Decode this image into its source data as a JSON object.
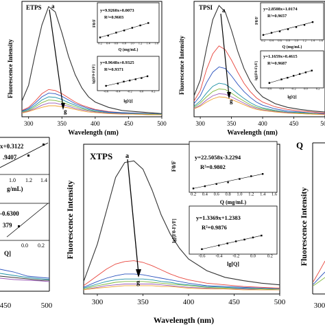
{
  "figure": {
    "panels": [
      {
        "id": "etps",
        "title": "ETPS",
        "ylabel": "Fluorescence Intensity",
        "xlabel": "Wavelength (nm)",
        "xticks": [
          "300",
          "350",
          "400",
          "450",
          "500"
        ],
        "arrow_start": "a",
        "arrow_end": "g",
        "inset_top": {
          "ylabel": "F0/F",
          "xlabel": "Q (mg/mL)",
          "eq": "y=9.9260x+0.0073",
          "r2": "R²=0.9603",
          "xticks": [
            "0.2",
            "0.4",
            "0.6",
            "0.8",
            "1.0",
            "1.2",
            "1.4",
            "1.6"
          ]
        },
        "inset_bottom": {
          "ylabel": "lg[(F0-F)/F]",
          "xlabel": "lg[Q]",
          "eq": "y=0.9648x+0.9325",
          "r2": "R²=0.9371",
          "xticks": [
            "-0.6",
            "-0.4",
            "-0.2",
            "0.0",
            "0.2"
          ]
        }
      },
      {
        "id": "tpsi",
        "title": "TPSI",
        "ylabel": "Fluorescence Intensity",
        "xlabel": "Wavelength (nm)",
        "xticks": [
          "300",
          "350",
          "400",
          "450",
          "500"
        ],
        "arrow_start": "a",
        "arrow_end": "g",
        "inset_top": {
          "ylabel": "F0/F",
          "xlabel": "Q (mg/mL)",
          "eq": "y=2.8508x+1.0174",
          "r2": "R²=0.9657",
          "xticks": [
            "0.2",
            "0.4",
            "0.6",
            "0.8",
            "1.0",
            "1.2",
            "1.4",
            "1.6"
          ]
        },
        "inset_bottom": {
          "ylabel": "lg[(F0-F)/F]",
          "xlabel": "lg[Q]",
          "eq": "y=1.1659x+0.4615",
          "r2": "R²=0.9687",
          "xticks": [
            "-0.6",
            "-0.4",
            "-0.2",
            "0.0",
            "0.2"
          ]
        }
      },
      {
        "id": "left-cut",
        "title": "",
        "ylabel": "",
        "xlabel": "",
        "xticks": [
          "450",
          "500"
        ],
        "inset_top": {
          "eq": "x+0.3122",
          "r2": ".9407",
          "xlabel": "g/mL)",
          "xticks": [
            "1.0",
            "1.2",
            "1.4"
          ]
        },
        "inset_bottom": {
          "eq": "-0.6300",
          "r2": "379",
          "xlabel": "Q]",
          "xticks": [
            "0.0",
            "0.2"
          ]
        }
      },
      {
        "id": "xtps",
        "title": "XTPS",
        "ylabel": "Fluorescence Intensity",
        "xlabel": "Wavelength (nm)",
        "xticks": [
          "300",
          "350",
          "400",
          "450",
          "500"
        ],
        "arrow_start": "a",
        "arrow_end": "g",
        "inset_top": {
          "ylabel": "F0/F",
          "xlabel": "Q (mg/mL)",
          "eq": "y=22.5058x-3.2294",
          "r2": "R²=0.9802",
          "xticks": [
            "0.2",
            "0.4",
            "0.6",
            "0.8",
            "1.0",
            "1.2",
            "1.4",
            "1.6"
          ]
        },
        "inset_bottom": {
          "ylabel": "lg[(F0-F)/F]",
          "xlabel": "lg[Q]",
          "eq": "y=1.3369x+1.2383",
          "r2": "R²=0.9876",
          "xticks": [
            "-0.6",
            "-0.4",
            "-0.2",
            "0.0",
            "0.2"
          ]
        }
      },
      {
        "id": "right-cut",
        "title": "Q",
        "ylabel": "Fluorescence Intensity",
        "xticks": [
          "300"
        ]
      }
    ]
  },
  "chart_data": [
    {
      "type": "line",
      "title": "ETPS",
      "xlabel": "Wavelength (nm)",
      "ylabel": "Fluorescence Intensity",
      "xlim": [
        290,
        500
      ],
      "ylim": [
        0,
        220
      ],
      "x": [
        290,
        300,
        310,
        320,
        330,
        340,
        350,
        360,
        370,
        380,
        390,
        400,
        420,
        440,
        460,
        480,
        500
      ],
      "series": [
        {
          "name": "a",
          "color": "#333333",
          "values": [
            30,
            60,
            120,
            175,
            210,
            200,
            160,
            115,
            80,
            55,
            38,
            28,
            18,
            12,
            10,
            8,
            6
          ]
        },
        {
          "name": "b",
          "color": "#e8453c",
          "values": [
            12,
            18,
            30,
            44,
            52,
            50,
            44,
            36,
            28,
            22,
            18,
            14,
            10,
            8,
            7,
            6,
            5
          ]
        },
        {
          "name": "c",
          "color": "#2a52be",
          "values": [
            11,
            16,
            26,
            38,
            45,
            44,
            39,
            32,
            25,
            20,
            16,
            13,
            9,
            8,
            7,
            6,
            5
          ]
        },
        {
          "name": "d",
          "color": "#1a8fa3",
          "values": [
            10,
            14,
            22,
            32,
            38,
            37,
            33,
            27,
            22,
            17,
            14,
            11,
            8,
            7,
            6,
            5,
            5
          ]
        },
        {
          "name": "e",
          "color": "#7fb83a",
          "values": [
            9,
            12,
            19,
            27,
            32,
            31,
            28,
            23,
            19,
            15,
            12,
            10,
            7,
            6,
            5,
            5,
            4
          ]
        },
        {
          "name": "f",
          "color": "#9b59b6",
          "values": [
            8,
            11,
            16,
            22,
            26,
            26,
            23,
            20,
            16,
            13,
            11,
            9,
            7,
            6,
            5,
            4,
            4
          ]
        },
        {
          "name": "g",
          "color": "#f0a030",
          "values": [
            7,
            10,
            14,
            18,
            21,
            21,
            19,
            17,
            14,
            11,
            9,
            8,
            6,
            5,
            5,
            4,
            4
          ]
        }
      ]
    },
    {
      "type": "line",
      "title": "TPSI",
      "xlabel": "Wavelength (nm)",
      "ylabel": "Fluorescence Intensity",
      "xlim": [
        290,
        500
      ],
      "ylim": [
        0,
        220
      ],
      "x": [
        290,
        300,
        310,
        320,
        330,
        340,
        350,
        360,
        370,
        380,
        390,
        400,
        420,
        440,
        460,
        480,
        500
      ],
      "series": [
        {
          "name": "a",
          "color": "#333333",
          "values": [
            40,
            70,
            130,
            185,
            212,
            200,
            165,
            125,
            92,
            68,
            50,
            38,
            25,
            18,
            14,
            11,
            9
          ]
        },
        {
          "name": "b",
          "color": "#e8453c",
          "values": [
            30,
            50,
            90,
            120,
            135,
            128,
            108,
            85,
            64,
            48,
            36,
            28,
            19,
            14,
            11,
            9,
            7
          ]
        },
        {
          "name": "c",
          "color": "#2a52be",
          "values": [
            25,
            40,
            65,
            85,
            95,
            92,
            78,
            62,
            48,
            37,
            28,
            22,
            15,
            11,
            9,
            7,
            6
          ]
        },
        {
          "name": "d",
          "color": "#1a8fa3",
          "values": [
            20,
            30,
            45,
            58,
            64,
            62,
            54,
            44,
            35,
            27,
            21,
            17,
            12,
            9,
            8,
            6,
            5
          ]
        },
        {
          "name": "e",
          "color": "#7fb83a",
          "values": [
            18,
            26,
            38,
            48,
            53,
            52,
            45,
            37,
            30,
            23,
            18,
            15,
            11,
            8,
            7,
            6,
            5
          ]
        },
        {
          "name": "f",
          "color": "#9b59b6",
          "values": [
            16,
            22,
            32,
            40,
            44,
            43,
            38,
            32,
            26,
            20,
            16,
            13,
            10,
            8,
            6,
            5,
            5
          ]
        },
        {
          "name": "g",
          "color": "#f0a030",
          "values": [
            15,
            20,
            28,
            34,
            38,
            37,
            33,
            28,
            23,
            18,
            14,
            12,
            9,
            7,
            6,
            5,
            4
          ]
        }
      ]
    },
    {
      "type": "line",
      "title": "XTPS",
      "xlabel": "Wavelength (nm)",
      "ylabel": "Fluorescence Intensity",
      "xlim": [
        285,
        500
      ],
      "ylim": [
        0,
        180
      ],
      "x": [
        285,
        300,
        310,
        320,
        330,
        340,
        350,
        360,
        370,
        380,
        390,
        400,
        420,
        440,
        460,
        480,
        500
      ],
      "series": [
        {
          "name": "a",
          "color": "#333333",
          "values": [
            15,
            60,
            100,
            140,
            158,
            160,
            150,
            125,
            95,
            72,
            55,
            42,
            28,
            20,
            16,
            13,
            11
          ]
        },
        {
          "name": "b",
          "color": "#e8453c",
          "values": [
            10,
            22,
            30,
            36,
            39,
            40,
            38,
            34,
            29,
            24,
            20,
            17,
            13,
            11,
            9,
            8,
            7
          ]
        },
        {
          "name": "c",
          "color": "#2a52be",
          "values": [
            8,
            15,
            19,
            22,
            24,
            24,
            23,
            21,
            19,
            17,
            15,
            13,
            10,
            9,
            8,
            7,
            6
          ]
        },
        {
          "name": "d",
          "color": "#1a8fa3",
          "values": [
            7,
            12,
            15,
            17,
            18,
            18,
            18,
            17,
            15,
            14,
            12,
            11,
            9,
            8,
            7,
            6,
            6
          ]
        },
        {
          "name": "e",
          "color": "#7fb83a",
          "values": [
            6,
            10,
            12,
            14,
            15,
            15,
            15,
            14,
            13,
            12,
            11,
            10,
            8,
            7,
            6,
            6,
            5
          ]
        },
        {
          "name": "f",
          "color": "#9b59b6",
          "values": [
            5,
            8,
            10,
            11,
            12,
            12,
            12,
            12,
            11,
            10,
            9,
            8,
            7,
            6,
            6,
            5,
            5
          ]
        },
        {
          "name": "g",
          "color": "#f0a030",
          "values": [
            5,
            7,
            8,
            9,
            10,
            10,
            10,
            10,
            9,
            9,
            8,
            7,
            6,
            6,
            5,
            5,
            5
          ]
        }
      ]
    },
    {
      "type": "scatter",
      "title": "",
      "xlabel": "Q (mg/mL)",
      "ylabel": "F0/F",
      "xlim": [
        0.2,
        1.6
      ],
      "ylim": [
        0,
        16
      ],
      "x": [
        0.2,
        0.4,
        0.6,
        0.8,
        1.0,
        1.2,
        1.4
      ],
      "values": [
        2.0,
        3.5,
        6.0,
        7.8,
        10.0,
        12.0,
        14.0
      ],
      "fit": "y=9.9260x+0.0073"
    },
    {
      "type": "scatter",
      "title": "",
      "xlabel": "lg[Q]",
      "ylabel": "lg[(F0-F)/F]",
      "xlim": [
        -0.7,
        0.25
      ],
      "ylim": [
        0.2,
        1.3
      ],
      "x": [
        -0.6,
        -0.4,
        -0.3,
        -0.2,
        -0.1,
        0.0,
        0.1
      ],
      "values": [
        0.35,
        0.52,
        0.66,
        0.74,
        0.83,
        0.92,
        1.05
      ],
      "fit": "y=0.9648x+0.9325"
    },
    {
      "type": "scatter",
      "title": "",
      "xlabel": "Q (mg/mL)",
      "ylabel": "F0/F",
      "xlim": [
        0.2,
        1.6
      ],
      "ylim": [
        1,
        6
      ],
      "x": [
        0.2,
        0.4,
        0.6,
        0.8,
        1.0,
        1.2,
        1.4
      ],
      "values": [
        1.6,
        2.2,
        2.6,
        3.2,
        3.8,
        4.4,
        5.2
      ],
      "fit": "y=2.8508x+1.0174"
    },
    {
      "type": "scatter",
      "title": "",
      "xlabel": "lg[Q]",
      "ylabel": "lg[(F0-F)/F]",
      "xlim": [
        -0.7,
        0.25
      ],
      "ylim": [
        -0.4,
        0.8
      ],
      "x": [
        -0.6,
        -0.4,
        -0.3,
        -0.2,
        -0.1,
        0.0,
        0.1
      ],
      "values": [
        -0.25,
        -0.01,
        0.1,
        0.23,
        0.35,
        0.46,
        0.58
      ],
      "fit": "y=1.1659x+0.4615"
    },
    {
      "type": "scatter",
      "title": "",
      "xlabel": "Q (mg/mL)",
      "ylabel": "F0/F",
      "xlim": [
        0.2,
        1.6
      ],
      "ylim": [
        0,
        32
      ],
      "x": [
        0.2,
        0.4,
        0.6,
        0.8,
        1.0,
        1.2,
        1.4
      ],
      "values": [
        2.0,
        6.0,
        10.0,
        13.0,
        19.0,
        24.0,
        28.0
      ],
      "fit": "y=22.5058x-3.2294"
    },
    {
      "type": "scatter",
      "title": "",
      "xlabel": "lg[Q]",
      "ylabel": "lg[(F0-F)/F]",
      "xlim": [
        -0.7,
        0.25
      ],
      "ylim": [
        0.3,
        1.6
      ],
      "x": [
        -0.6,
        -0.4,
        -0.3,
        -0.2,
        -0.1,
        0.0,
        0.1
      ],
      "values": [
        0.45,
        0.7,
        0.84,
        0.98,
        1.1,
        1.24,
        1.37
      ],
      "fit": "y=1.3369x+1.2383"
    }
  ]
}
